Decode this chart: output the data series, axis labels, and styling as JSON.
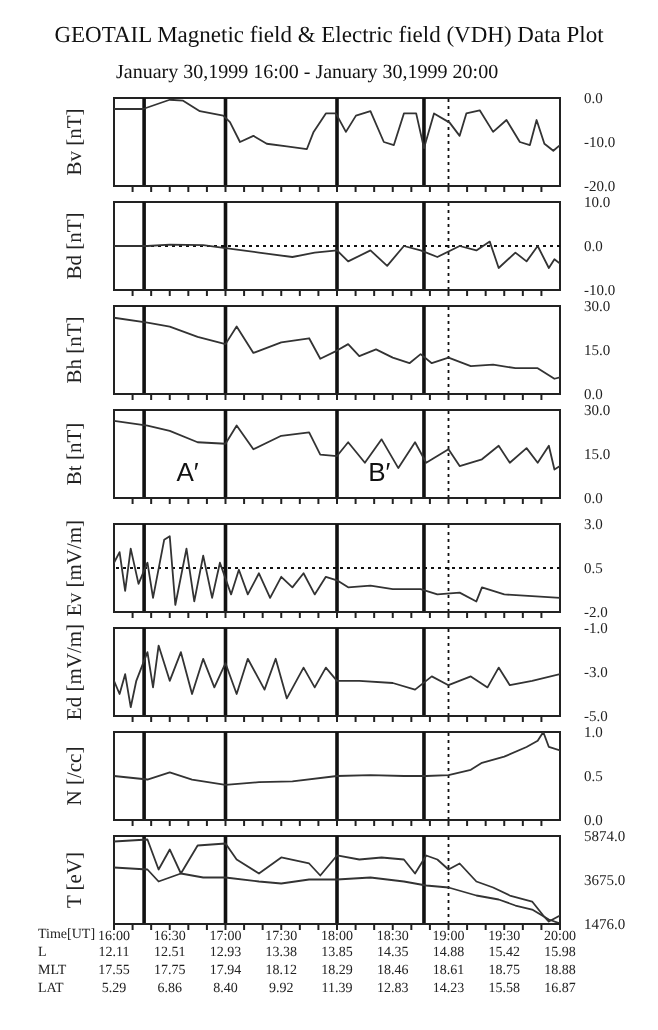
{
  "chart_data": [
    {
      "type": "line",
      "title": "GEOTAIL Magnetic field & Electric field (VDH) Data Plot",
      "subtitle": "January 30,1999 16:00 - January 30,1999 20:00",
      "ylabel": "Bv [nT]",
      "xlim": [
        16,
        20
      ],
      "ylim": [
        -20,
        0
      ],
      "yticks": [
        {
          "value": 0,
          "label": "0.0"
        },
        {
          "value": -10,
          "label": "-10.0"
        },
        {
          "value": -20,
          "label": "-20.0"
        }
      ],
      "tick_labels": "y",
      "xticks": [
        {
          "value": 16.1667,
          "label": null
        },
        {
          "value": 16.3333,
          "label": null
        },
        {
          "value": 16.5,
          "label": null
        },
        {
          "value": 16.6667,
          "label": null
        },
        {
          "value": 16.8333,
          "label": null
        },
        {
          "value": 17,
          "label": null
        },
        {
          "value": 17.1667,
          "label": null
        },
        {
          "value": 17.3333,
          "label": null
        },
        {
          "value": 17.5,
          "label": null
        },
        {
          "value": 17.6667,
          "label": null
        },
        {
          "value": 17.8333,
          "label": null
        },
        {
          "value": 18,
          "label": null
        },
        {
          "value": 18.1667,
          "label": null
        },
        {
          "value": 18.3333,
          "label": null
        },
        {
          "value": 18.5,
          "label": null
        },
        {
          "value": 18.6667,
          "label": null
        },
        {
          "value": 18.8333,
          "label": null
        },
        {
          "value": 19,
          "label": null
        },
        {
          "value": 19.1667,
          "label": null
        },
        {
          "value": 19.3333,
          "label": null
        },
        {
          "value": 19.5,
          "label": null
        },
        {
          "value": 19.6667,
          "label": null
        },
        {
          "value": 19.8333,
          "label": null
        }
      ],
      "x": [
        16.0,
        16.26,
        16.5,
        16.62,
        16.77,
        16.98,
        17.04,
        17.13,
        17.25,
        17.37,
        17.55,
        17.73,
        17.79,
        17.9,
        17.99,
        18.08,
        18.17,
        18.3,
        18.42,
        18.51,
        18.6,
        18.71,
        18.78,
        18.87,
        19.01,
        19.1,
        19.16,
        19.28,
        19.4,
        19.52,
        19.64,
        19.73,
        19.79,
        19.86,
        19.94,
        20.0
      ],
      "series": [
        {
          "color": "#333333",
          "values": [
            -2.5,
            -2.5,
            -0.4,
            -0.6,
            -3,
            -4,
            -5.5,
            -10,
            -8.6,
            -10.4,
            -11,
            -11.6,
            -7.7,
            -3.5,
            -3.5,
            -7.7,
            -4,
            -3,
            -10,
            -10.7,
            -3.5,
            -3.5,
            -11.4,
            -3.5,
            -5.6,
            -8.6,
            -3.5,
            -2.8,
            -7.7,
            -5,
            -10,
            -10.7,
            -5,
            -10.4,
            -12,
            -10.7
          ]
        }
      ],
      "ref_lines": [
        {
          "axis": "x",
          "value": 16.27
        },
        {
          "axis": "x",
          "value": 17.0
        },
        {
          "axis": "x",
          "value": 18.0
        },
        {
          "axis": "x",
          "value": 18.78
        },
        {
          "axis": "x",
          "value": 19.0,
          "line_style": "dotted"
        }
      ]
    },
    {
      "type": "line",
      "ylabel": "Bd [nT]",
      "xlim": [
        16,
        20
      ],
      "ylim": [
        -10,
        10
      ],
      "yticks": [
        {
          "value": 10,
          "label": "10.0"
        },
        {
          "value": 0,
          "label": "0.0"
        },
        {
          "value": -10,
          "label": "-10.0"
        }
      ],
      "tick_labels": "y",
      "xticks": [
        {
          "value": 16.1667,
          "label": null
        },
        {
          "value": 16.3333,
          "label": null
        },
        {
          "value": 16.5,
          "label": null
        },
        {
          "value": 16.6667,
          "label": null
        },
        {
          "value": 16.8333,
          "label": null
        },
        {
          "value": 17,
          "label": null
        },
        {
          "value": 17.1667,
          "label": null
        },
        {
          "value": 17.3333,
          "label": null
        },
        {
          "value": 17.5,
          "label": null
        },
        {
          "value": 17.6667,
          "label": null
        },
        {
          "value": 17.8333,
          "label": null
        },
        {
          "value": 18,
          "label": null
        },
        {
          "value": 18.1667,
          "label": null
        },
        {
          "value": 18.3333,
          "label": null
        },
        {
          "value": 18.5,
          "label": null
        },
        {
          "value": 18.6667,
          "label": null
        },
        {
          "value": 18.8333,
          "label": null
        },
        {
          "value": 19,
          "label": null
        },
        {
          "value": 19.1667,
          "label": null
        },
        {
          "value": 19.3333,
          "label": null
        },
        {
          "value": 19.5,
          "label": null
        },
        {
          "value": 19.6667,
          "label": null
        },
        {
          "value": 19.8333,
          "label": null
        }
      ],
      "x": [
        16.0,
        16.3,
        16.5,
        16.8,
        17.0,
        17.3,
        17.6,
        17.8,
        18.0,
        18.1,
        18.3,
        18.45,
        18.6,
        18.75,
        18.9,
        19.1,
        19.25,
        19.37,
        19.45,
        19.6,
        19.7,
        19.8,
        19.9,
        19.95,
        20.0
      ],
      "series": [
        {
          "color": "#333333",
          "values": [
            0,
            0,
            0.3,
            0.2,
            -0.5,
            -1.5,
            -2.5,
            -1.5,
            -1,
            -3.5,
            -1,
            -4.5,
            0,
            -1,
            -2.5,
            0,
            -1,
            1,
            -5,
            -1.5,
            -3.5,
            0,
            -5,
            -3,
            -4
          ]
        }
      ],
      "ref_lines": [
        {
          "axis": "y",
          "value": 0,
          "line_style": "dotted"
        },
        {
          "axis": "x",
          "value": 16.27
        },
        {
          "axis": "x",
          "value": 17.0
        },
        {
          "axis": "x",
          "value": 18.0
        },
        {
          "axis": "x",
          "value": 18.78
        },
        {
          "axis": "x",
          "value": 19.0,
          "line_style": "dotted"
        }
      ]
    },
    {
      "type": "line",
      "ylabel": "Bh [nT]",
      "xlim": [
        16,
        20
      ],
      "ylim": [
        0,
        30
      ],
      "yticks": [
        {
          "value": 30,
          "label": "30.0"
        },
        {
          "value": 15,
          "label": "15.0"
        },
        {
          "value": 0,
          "label": "0.0"
        }
      ],
      "tick_labels": "y",
      "xticks": [
        {
          "value": 16.1667,
          "label": null
        },
        {
          "value": 16.3333,
          "label": null
        },
        {
          "value": 16.5,
          "label": null
        },
        {
          "value": 16.6667,
          "label": null
        },
        {
          "value": 16.8333,
          "label": null
        },
        {
          "value": 17,
          "label": null
        },
        {
          "value": 17.1667,
          "label": null
        },
        {
          "value": 17.3333,
          "label": null
        },
        {
          "value": 17.5,
          "label": null
        },
        {
          "value": 17.6667,
          "label": null
        },
        {
          "value": 17.8333,
          "label": null
        },
        {
          "value": 18,
          "label": null
        },
        {
          "value": 18.1667,
          "label": null
        },
        {
          "value": 18.3333,
          "label": null
        },
        {
          "value": 18.5,
          "label": null
        },
        {
          "value": 18.6667,
          "label": null
        },
        {
          "value": 18.8333,
          "label": null
        },
        {
          "value": 19,
          "label": null
        },
        {
          "value": 19.1667,
          "label": null
        },
        {
          "value": 19.3333,
          "label": null
        },
        {
          "value": 19.5,
          "label": null
        },
        {
          "value": 19.6667,
          "label": null
        },
        {
          "value": 19.8333,
          "label": null
        }
      ],
      "x": [
        16.0,
        16.3,
        16.5,
        16.75,
        17.0,
        17.1,
        17.25,
        17.5,
        17.75,
        17.85,
        18.0,
        18.1,
        18.2,
        18.35,
        18.5,
        18.65,
        18.75,
        18.85,
        19.0,
        19.2,
        19.4,
        19.6,
        19.8,
        19.95,
        20.0
      ],
      "series": [
        {
          "color": "#333333",
          "values": [
            26,
            24.3,
            23,
            19.5,
            17,
            23,
            14,
            17.6,
            19,
            12,
            14.8,
            17,
            12.9,
            15.2,
            12.4,
            10.5,
            13.6,
            10.5,
            12.4,
            9.5,
            10,
            8.8,
            8.8,
            5.2,
            5.7
          ]
        }
      ],
      "ref_lines": [
        {
          "axis": "x",
          "value": 16.27
        },
        {
          "axis": "x",
          "value": 17.0
        },
        {
          "axis": "x",
          "value": 18.0
        },
        {
          "axis": "x",
          "value": 18.78
        },
        {
          "axis": "x",
          "value": 19.0,
          "line_style": "dotted"
        }
      ]
    },
    {
      "type": "line",
      "ylabel": "Bt [nT]",
      "xlim": [
        16,
        20
      ],
      "ylim": [
        0,
        30
      ],
      "yticks": [
        {
          "value": 30,
          "label": "30.0"
        },
        {
          "value": 15,
          "label": "15.0"
        },
        {
          "value": 0,
          "label": "0.0"
        }
      ],
      "tick_labels": "y",
      "xticks": [
        {
          "value": 16.1667,
          "label": null
        },
        {
          "value": 16.3333,
          "label": null
        },
        {
          "value": 16.5,
          "label": null
        },
        {
          "value": 16.6667,
          "label": null
        },
        {
          "value": 16.8333,
          "label": null
        },
        {
          "value": 17,
          "label": null
        },
        {
          "value": 17.1667,
          "label": null
        },
        {
          "value": 17.3333,
          "label": null
        },
        {
          "value": 17.5,
          "label": null
        },
        {
          "value": 17.6667,
          "label": null
        },
        {
          "value": 17.8333,
          "label": null
        },
        {
          "value": 18,
          "label": null
        },
        {
          "value": 18.1667,
          "label": null
        },
        {
          "value": 18.3333,
          "label": null
        },
        {
          "value": 18.5,
          "label": null
        },
        {
          "value": 18.6667,
          "label": null
        },
        {
          "value": 18.8333,
          "label": null
        },
        {
          "value": 19,
          "label": null
        },
        {
          "value": 19.1667,
          "label": null
        },
        {
          "value": 19.3333,
          "label": null
        },
        {
          "value": 19.5,
          "label": null
        },
        {
          "value": 19.6667,
          "label": null
        },
        {
          "value": 19.8333,
          "label": null
        }
      ],
      "x": [
        16.0,
        16.3,
        16.5,
        16.75,
        17.0,
        17.1,
        17.25,
        17.5,
        17.75,
        17.85,
        18.0,
        18.1,
        18.25,
        18.4,
        18.55,
        18.7,
        18.8,
        19.0,
        19.1,
        19.3,
        19.45,
        19.55,
        19.7,
        19.8,
        19.9,
        19.95,
        20.0
      ],
      "series": [
        {
          "color": "#333333",
          "values": [
            26.3,
            24.7,
            22.9,
            19,
            18.5,
            24.7,
            16.6,
            21.2,
            22.4,
            14.8,
            14.3,
            19,
            12,
            20,
            10.2,
            19,
            12,
            16.6,
            10.9,
            13.2,
            17.8,
            12,
            17,
            12,
            17.8,
            9.7,
            10.9
          ]
        }
      ],
      "ref_lines": [
        {
          "axis": "x",
          "value": 16.27
        },
        {
          "axis": "x",
          "value": 17.0
        },
        {
          "axis": "x",
          "value": 18.0
        },
        {
          "axis": "x",
          "value": 18.78
        },
        {
          "axis": "x",
          "value": 19.0,
          "line_style": "dotted"
        }
      ],
      "annotations": [
        "A′",
        "B′"
      ]
    },
    {
      "type": "line",
      "ylabel": "Ev [mV/m]",
      "xlim": [
        16,
        20
      ],
      "ylim": [
        -2,
        3
      ],
      "yticks": [
        {
          "value": 3,
          "label": "3.0"
        },
        0.5,
        {
          "value": -2,
          "label": "-2.0"
        }
      ],
      "tick_labels": "y",
      "xticks": [
        {
          "value": 16.1667,
          "label": null
        },
        {
          "value": 16.3333,
          "label": null
        },
        {
          "value": 16.5,
          "label": null
        },
        {
          "value": 16.6667,
          "label": null
        },
        {
          "value": 16.8333,
          "label": null
        },
        {
          "value": 17,
          "label": null
        },
        {
          "value": 17.1667,
          "label": null
        },
        {
          "value": 17.3333,
          "label": null
        },
        {
          "value": 17.5,
          "label": null
        },
        {
          "value": 17.6667,
          "label": null
        },
        {
          "value": 17.8333,
          "label": null
        },
        {
          "value": 18,
          "label": null
        },
        {
          "value": 18.1667,
          "label": null
        },
        {
          "value": 18.3333,
          "label": null
        },
        {
          "value": 18.5,
          "label": null
        },
        {
          "value": 18.6667,
          "label": null
        },
        {
          "value": 18.8333,
          "label": null
        },
        {
          "value": 19,
          "label": null
        },
        {
          "value": 19.1667,
          "label": null
        },
        {
          "value": 19.3333,
          "label": null
        },
        {
          "value": 19.5,
          "label": null
        },
        {
          "value": 19.6667,
          "label": null
        },
        {
          "value": 19.8333,
          "label": null
        }
      ],
      "x": [
        16.0,
        16.05,
        16.1,
        16.15,
        16.22,
        16.3,
        16.35,
        16.45,
        16.5,
        16.55,
        16.65,
        16.72,
        16.8,
        16.88,
        16.95,
        17.05,
        17.12,
        17.2,
        17.3,
        17.4,
        17.5,
        17.6,
        17.7,
        17.8,
        17.9,
        18.0,
        18.1,
        18.3,
        18.5,
        18.75,
        18.9,
        19.1,
        19.25,
        19.3,
        19.5,
        19.75,
        20.0
      ],
      "series": [
        {
          "color": "#333333",
          "values": [
            0.8,
            1.4,
            -0.8,
            1.6,
            -0.4,
            0.8,
            -1.2,
            2.1,
            2.3,
            -1.6,
            1.6,
            -1.4,
            1.2,
            -1.2,
            0.8,
            -1,
            0.4,
            -1,
            0.2,
            -1.2,
            0,
            -0.6,
            0.2,
            -1,
            0,
            -0.2,
            -0.6,
            -0.5,
            -0.7,
            -0.7,
            -1,
            -0.9,
            -1.4,
            -0.6,
            -1,
            -1.1,
            -1.2
          ]
        }
      ],
      "ref_lines": [
        {
          "axis": "y",
          "value": 0.5,
          "line_style": "dotted"
        },
        {
          "axis": "x",
          "value": 16.27
        },
        {
          "axis": "x",
          "value": 17.0
        },
        {
          "axis": "x",
          "value": 18.0
        },
        {
          "axis": "x",
          "value": 18.78
        },
        {
          "axis": "x",
          "value": 19.0,
          "line_style": "dotted"
        }
      ]
    },
    {
      "type": "line",
      "ylabel": "Ed [mV/m]",
      "xlim": [
        16,
        20
      ],
      "ylim": [
        -5,
        -1
      ],
      "yticks": [
        {
          "value": -1,
          "label": "-1.0"
        },
        {
          "value": -3,
          "label": "-3.0"
        },
        {
          "value": -5,
          "label": "-5.0"
        }
      ],
      "tick_labels": "y",
      "xticks": [
        {
          "value": 16.1667,
          "label": null
        },
        {
          "value": 16.3333,
          "label": null
        },
        {
          "value": 16.5,
          "label": null
        },
        {
          "value": 16.6667,
          "label": null
        },
        {
          "value": 16.8333,
          "label": null
        },
        {
          "value": 17,
          "label": null
        },
        {
          "value": 17.1667,
          "label": null
        },
        {
          "value": 17.3333,
          "label": null
        },
        {
          "value": 17.5,
          "label": null
        },
        {
          "value": 17.6667,
          "label": null
        },
        {
          "value": 17.8333,
          "label": null
        },
        {
          "value": 18,
          "label": null
        },
        {
          "value": 18.1667,
          "label": null
        },
        {
          "value": 18.3333,
          "label": null
        },
        {
          "value": 18.5,
          "label": null
        },
        {
          "value": 18.6667,
          "label": null
        },
        {
          "value": 18.8333,
          "label": null
        },
        {
          "value": 19,
          "label": null
        },
        {
          "value": 19.1667,
          "label": null
        },
        {
          "value": 19.3333,
          "label": null
        },
        {
          "value": 19.5,
          "label": null
        },
        {
          "value": 19.6667,
          "label": null
        },
        {
          "value": 19.8333,
          "label": null
        }
      ],
      "x": [
        16.0,
        16.05,
        16.1,
        16.15,
        16.2,
        16.3,
        16.35,
        16.4,
        16.5,
        16.6,
        16.7,
        16.8,
        16.9,
        17.0,
        17.1,
        17.2,
        17.35,
        17.45,
        17.55,
        17.7,
        17.8,
        17.9,
        18.0,
        18.2,
        18.5,
        18.7,
        18.85,
        19.0,
        19.2,
        19.35,
        19.45,
        19.55,
        19.75,
        20.0
      ],
      "series": [
        {
          "color": "#333333",
          "values": [
            -3.4,
            -4,
            -3.1,
            -4.6,
            -3.4,
            -2.1,
            -3.7,
            -1.8,
            -3.4,
            -2.1,
            -4,
            -2.4,
            -3.7,
            -2.6,
            -4,
            -2.4,
            -3.8,
            -2.4,
            -4.2,
            -2.8,
            -3.7,
            -2.8,
            -3.4,
            -3.4,
            -3.5,
            -3.8,
            -3.2,
            -3.6,
            -3.2,
            -3.7,
            -2.8,
            -3.6,
            -3.4,
            -3.1
          ]
        }
      ],
      "ref_lines": [
        {
          "axis": "x",
          "value": 16.27
        },
        {
          "axis": "x",
          "value": 17.0
        },
        {
          "axis": "x",
          "value": 18.0
        },
        {
          "axis": "x",
          "value": 18.78
        },
        {
          "axis": "x",
          "value": 19.0,
          "line_style": "dotted"
        }
      ]
    },
    {
      "type": "line",
      "ylabel": "N [/cc]",
      "xlim": [
        16,
        20
      ],
      "ylim": [
        0,
        1
      ],
      "yticks": [
        {
          "value": 1,
          "label": "1.0"
        },
        0.5,
        {
          "value": 0,
          "label": "0.0"
        }
      ],
      "tick_labels": "y",
      "xticks": [
        {
          "value": 16.1667,
          "label": null
        },
        {
          "value": 16.3333,
          "label": null
        },
        {
          "value": 16.5,
          "label": null
        },
        {
          "value": 16.6667,
          "label": null
        },
        {
          "value": 16.8333,
          "label": null
        },
        {
          "value": 17,
          "label": null
        },
        {
          "value": 17.1667,
          "label": null
        },
        {
          "value": 17.3333,
          "label": null
        },
        {
          "value": 17.5,
          "label": null
        },
        {
          "value": 17.6667,
          "label": null
        },
        {
          "value": 17.8333,
          "label": null
        },
        {
          "value": 18,
          "label": null
        },
        {
          "value": 18.1667,
          "label": null
        },
        {
          "value": 18.3333,
          "label": null
        },
        {
          "value": 18.5,
          "label": null
        },
        {
          "value": 18.6667,
          "label": null
        },
        {
          "value": 18.8333,
          "label": null
        },
        {
          "value": 19,
          "label": null
        },
        {
          "value": 19.1667,
          "label": null
        },
        {
          "value": 19.3333,
          "label": null
        },
        {
          "value": 19.5,
          "label": null
        },
        {
          "value": 19.6667,
          "label": null
        },
        {
          "value": 19.8333,
          "label": null
        }
      ],
      "x": [
        16.0,
        16.3,
        16.5,
        16.7,
        17.0,
        17.3,
        17.6,
        18.0,
        18.3,
        18.6,
        18.8,
        19.0,
        19.2,
        19.3,
        19.5,
        19.7,
        19.8,
        19.85,
        19.9,
        20.0
      ],
      "series": [
        {
          "color": "#333333",
          "values": [
            0.5,
            0.46,
            0.54,
            0.46,
            0.4,
            0.43,
            0.44,
            0.5,
            0.51,
            0.5,
            0.5,
            0.51,
            0.57,
            0.65,
            0.72,
            0.83,
            0.9,
            1.0,
            0.83,
            0.79
          ]
        }
      ],
      "ref_lines": [
        {
          "axis": "x",
          "value": 16.27
        },
        {
          "axis": "x",
          "value": 17.0
        },
        {
          "axis": "x",
          "value": 18.0
        },
        {
          "axis": "x",
          "value": 18.78
        },
        {
          "axis": "x",
          "value": 19.0,
          "line_style": "dotted"
        }
      ]
    },
    {
      "type": "line",
      "ylabel": "T [eV]",
      "xlabel": "Time[UT]",
      "xlim": [
        16,
        20
      ],
      "ylim": [
        1476,
        5874
      ],
      "yticks": [
        {
          "value": 5874,
          "label": "5874.0"
        },
        {
          "value": 3675,
          "label": "3675.0"
        },
        {
          "value": 1476,
          "label": "1476.0"
        }
      ],
      "xticks": [
        {
          "value": 16,
          "label": "16:00"
        },
        {
          "value": 16.1667,
          "label": null
        },
        {
          "value": 16.3333,
          "label": null
        },
        {
          "value": 16.5,
          "label": "16:30"
        },
        {
          "value": 16.6667,
          "label": null
        },
        {
          "value": 16.8333,
          "label": null
        },
        {
          "value": 17,
          "label": "17:00"
        },
        {
          "value": 17.1667,
          "label": null
        },
        {
          "value": 17.3333,
          "label": null
        },
        {
          "value": 17.5,
          "label": "17:30"
        },
        {
          "value": 17.6667,
          "label": null
        },
        {
          "value": 17.8333,
          "label": null
        },
        {
          "value": 18,
          "label": "18:00"
        },
        {
          "value": 18.1667,
          "label": null
        },
        {
          "value": 18.3333,
          "label": null
        },
        {
          "value": 18.5,
          "label": "18:30"
        },
        {
          "value": 18.6667,
          "label": null
        },
        {
          "value": 18.8333,
          "label": null
        },
        {
          "value": 19,
          "label": "19:00"
        },
        {
          "value": 19.1667,
          "label": null
        },
        {
          "value": 19.3333,
          "label": null
        },
        {
          "value": 19.5,
          "label": "19:30"
        },
        {
          "value": 19.6667,
          "label": null
        },
        {
          "value": 19.8333,
          "label": null
        },
        {
          "value": 20,
          "label": "20:00"
        }
      ],
      "annotations": [
        "L",
        "12.11",
        "12.51",
        "12.93",
        "13.38",
        "13.85",
        "14.35",
        "14.88",
        "15.42",
        "15.98",
        "MLT",
        "17.55",
        "17.75",
        "17.94",
        "18.12",
        "18.29",
        "18.46",
        "18.61",
        "18.75",
        "18.88",
        "LAT",
        "5.29",
        "6.86",
        "8.40",
        "9.92",
        "11.39",
        "12.83",
        "14.23",
        "15.58",
        "16.87"
      ],
      "series": [
        {
          "color": "#333333",
          "x": [
            16.0,
            16.3,
            16.4,
            16.5,
            16.6,
            16.75,
            17.0,
            17.1,
            17.3,
            17.5,
            17.75,
            17.85,
            18.0,
            18.2,
            18.4,
            18.6,
            18.7,
            18.8,
            18.9,
            19.0,
            19.1,
            19.25,
            19.4,
            19.55,
            19.75,
            19.85,
            19.9,
            20.0
          ],
          "values": [
            5600,
            5700,
            4200,
            5200,
            4000,
            5400,
            5500,
            4700,
            4000,
            4800,
            4500,
            3900,
            4900,
            4700,
            4800,
            4700,
            4000,
            4900,
            4700,
            4200,
            4500,
            3600,
            3300,
            2900,
            2600,
            1900,
            1600,
            1900
          ]
        },
        {
          "color": "#333333",
          "x": [
            16.0,
            16.3,
            16.4,
            16.6,
            16.8,
            17.0,
            17.3,
            17.5,
            17.75,
            18.0,
            18.3,
            18.6,
            18.8,
            19.0,
            19.25,
            19.45,
            19.6,
            19.75,
            19.9,
            20.0
          ],
          "values": [
            4300,
            4200,
            3600,
            4000,
            3800,
            3800,
            3600,
            3500,
            3700,
            3700,
            3800,
            3600,
            3400,
            3300,
            2900,
            2700,
            2400,
            2200,
            1700,
            1500
          ]
        }
      ],
      "ref_lines": [
        {
          "axis": "x",
          "value": 16.27
        },
        {
          "axis": "x",
          "value": 17.0
        },
        {
          "axis": "x",
          "value": 18.0
        },
        {
          "axis": "x",
          "value": 18.78
        },
        {
          "axis": "x",
          "value": 19.0,
          "line_style": "dotted"
        }
      ]
    }
  ]
}
